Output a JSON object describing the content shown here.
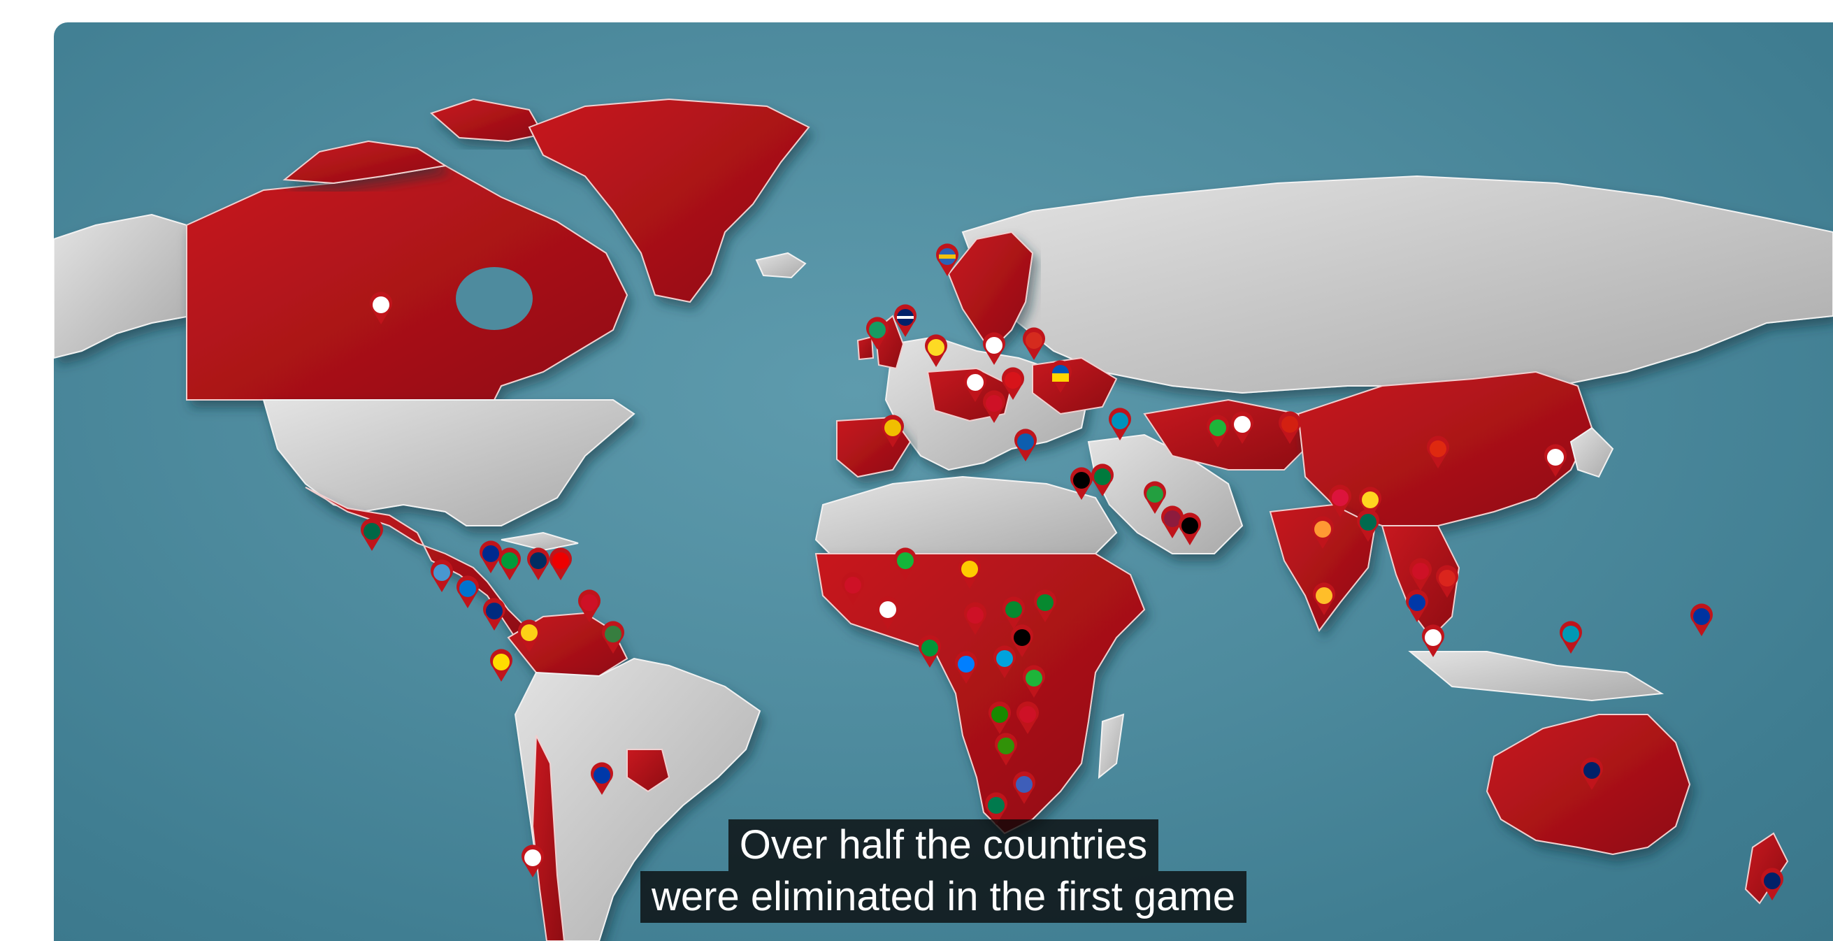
{
  "video": {
    "captions": [
      "Over half the countries",
      "were eliminated in the first game"
    ]
  },
  "map": {
    "description_colors": {
      "ocean": "#4e8b9e",
      "highlight_country": "#b3141a",
      "other_land": "#c9c9c9"
    },
    "icons": {
      "marker": "flag-pin-icon"
    }
  }
}
